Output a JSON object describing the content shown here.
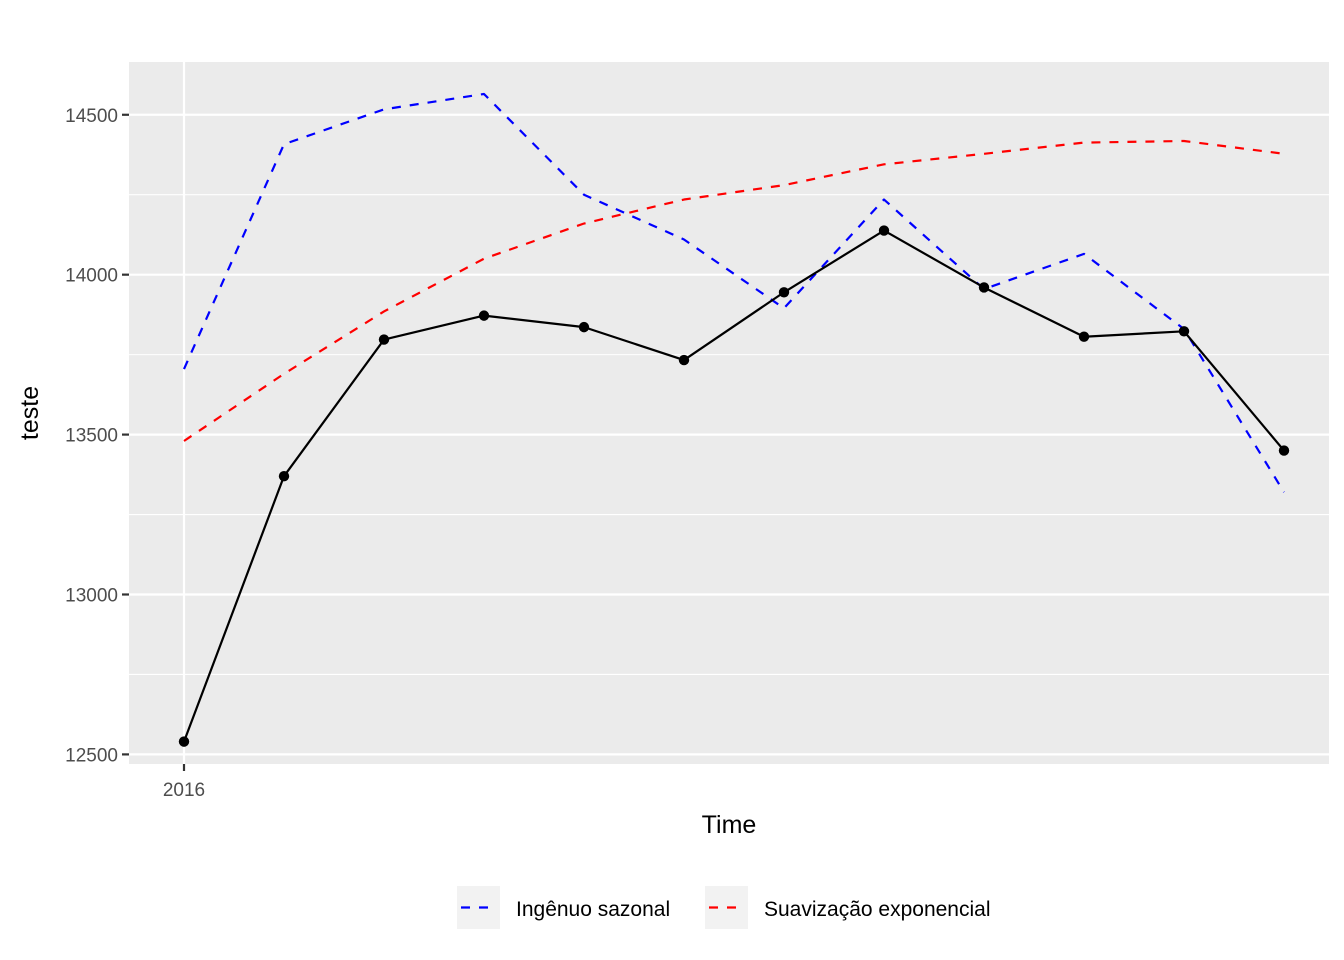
{
  "chart_data": {
    "type": "line",
    "xlabel": "Time",
    "ylabel": "teste",
    "x_ticks": [
      {
        "x": 0,
        "label": "2016"
      }
    ],
    "y_ticks": [
      12500,
      13000,
      13500,
      14000,
      14500
    ],
    "y_minor_ticks": [
      12750,
      13250,
      13750,
      14250
    ],
    "xlim": [
      -0.55,
      11.45
    ],
    "ylim": [
      12470,
      14665
    ],
    "grid": true,
    "legend_position": "bottom",
    "x": [
      0,
      1,
      2,
      3,
      4,
      5,
      6,
      7,
      8,
      9,
      10,
      11
    ],
    "observed": {
      "values": [
        12540,
        13370,
        13797,
        13872,
        13836,
        13733,
        13945,
        14138,
        13960,
        13806,
        13823,
        13450
      ],
      "color": "#000000"
    },
    "series": [
      {
        "name": "Ingênuo sazonal",
        "values": [
          13705,
          14408,
          14517,
          14565,
          14250,
          14110,
          13895,
          14235,
          13955,
          14065,
          13830,
          13320
        ],
        "color": "#0000ff",
        "dash": "dashed"
      },
      {
        "name": "Suavização exponencial",
        "values": [
          13480,
          13690,
          13885,
          14050,
          14160,
          14235,
          14280,
          14345,
          14378,
          14413,
          14418,
          14378
        ],
        "color": "#ff0000",
        "dash": "dashed"
      }
    ]
  }
}
